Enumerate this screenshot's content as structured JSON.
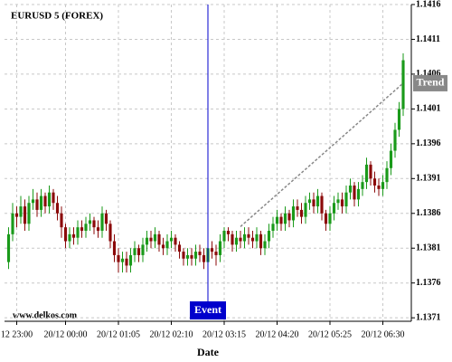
{
  "chart_data": {
    "type": "candlestick",
    "title": "EURUSD 5 (FOREX)",
    "watermark": "www.delkos.com",
    "x_label": "Date",
    "up_color": "#1a9a1a",
    "down_color": "#8b0a0a",
    "grid": true,
    "ylim": [
      1.13705,
      1.1416
    ],
    "yticks": [
      1.1371,
      1.1376,
      1.1381,
      1.1386,
      1.1391,
      1.1396,
      1.1401,
      1.1406,
      1.1411,
      1.1416
    ],
    "xlim": [
      -1,
      99
    ],
    "xticks": [
      {
        "value": 2,
        "label": "12 23:00"
      },
      {
        "value": 14,
        "label": "20/12 00:00"
      },
      {
        "value": 27,
        "label": "20/12 01:05"
      },
      {
        "value": 40,
        "label": "20/12 02:10"
      },
      {
        "value": 53,
        "label": "20/12 03:15"
      },
      {
        "value": 66,
        "label": "20/12 04:20"
      },
      {
        "value": 79,
        "label": "20/12 05:25"
      },
      {
        "value": 92,
        "label": "20/12 06:30"
      }
    ],
    "event": {
      "label": "Event",
      "x": 49,
      "color": "#0000cc"
    },
    "trend": {
      "label": "Trend",
      "x": [
        57,
        97
      ],
      "y": [
        1.13841,
        1.14047
      ],
      "color": "#888888"
    },
    "open": [
      1.1379,
      1.1383,
      1.1386,
      1.13855,
      1.1387,
      1.13845,
      1.13875,
      1.1388,
      1.13865,
      1.13885,
      1.1387,
      1.1389,
      1.13875,
      1.1386,
      1.1384,
      1.1382,
      1.1383,
      1.13825,
      1.1384,
      1.13835,
      1.13845,
      1.1385,
      1.1384,
      1.13835,
      1.1386,
      1.13845,
      1.1382,
      1.138,
      1.1379,
      1.13795,
      1.13785,
      1.138,
      1.1381,
      1.138,
      1.13815,
      1.13825,
      1.1382,
      1.1383,
      1.13815,
      1.1381,
      1.1382,
      1.13825,
      1.13815,
      1.13805,
      1.13795,
      1.138,
      1.13795,
      1.13805,
      1.138,
      1.1379,
      1.1381,
      1.13805,
      1.138,
      1.1382,
      1.13835,
      1.1383,
      1.13815,
      1.13825,
      1.1382,
      1.1383,
      1.13825,
      1.1382,
      1.1383,
      1.1381,
      1.1382,
      1.13835,
      1.13845,
      1.13855,
      1.13845,
      1.1386,
      1.1385,
      1.1387,
      1.13865,
      1.13855,
      1.13875,
      1.1388,
      1.1387,
      1.13885,
      1.1386,
      1.13845,
      1.1386,
      1.13875,
      1.1388,
      1.1387,
      1.1389,
      1.139,
      1.1388,
      1.13895,
      1.13905,
      1.1393,
      1.1391,
      1.139,
      1.13895,
      1.13905,
      1.13925,
      1.1395,
      1.1398,
      1.1401
    ],
    "high": [
      1.1384,
      1.13875,
      1.1387,
      1.13885,
      1.1388,
      1.13885,
      1.13895,
      1.1389,
      1.13895,
      1.1389,
      1.139,
      1.13895,
      1.13885,
      1.1387,
      1.13845,
      1.1384,
      1.1384,
      1.1385,
      1.1385,
      1.13855,
      1.1386,
      1.13855,
      1.1385,
      1.1387,
      1.13865,
      1.1385,
      1.1383,
      1.1381,
      1.13805,
      1.13805,
      1.1381,
      1.1382,
      1.13815,
      1.13825,
      1.13835,
      1.13835,
      1.1384,
      1.13835,
      1.13825,
      1.1383,
      1.13835,
      1.1383,
      1.1382,
      1.1381,
      1.1381,
      1.1381,
      1.13815,
      1.13815,
      1.1381,
      1.1382,
      1.1382,
      1.13815,
      1.1383,
      1.1384,
      1.1384,
      1.13835,
      1.13835,
      1.13835,
      1.1384,
      1.1384,
      1.13835,
      1.1384,
      1.13835,
      1.1383,
      1.13845,
      1.13855,
      1.13865,
      1.1386,
      1.1387,
      1.13865,
      1.1388,
      1.1388,
      1.13875,
      1.13885,
      1.1389,
      1.1389,
      1.13895,
      1.1389,
      1.13865,
      1.1387,
      1.13885,
      1.1389,
      1.1389,
      1.139,
      1.1391,
      1.13905,
      1.13905,
      1.13915,
      1.1394,
      1.13935,
      1.1392,
      1.1391,
      1.13915,
      1.13935,
      1.1396,
      1.1399,
      1.1402,
      1.1409
    ],
    "low": [
      1.1378,
      1.1382,
      1.1384,
      1.13845,
      1.13835,
      1.13835,
      1.13865,
      1.13855,
      1.13855,
      1.1386,
      1.1386,
      1.13865,
      1.1385,
      1.13825,
      1.1381,
      1.1381,
      1.13815,
      1.13815,
      1.13825,
      1.13825,
      1.13835,
      1.1383,
      1.13825,
      1.13825,
      1.13835,
      1.1381,
      1.1379,
      1.13775,
      1.13775,
      1.13775,
      1.13775,
      1.1379,
      1.1379,
      1.1379,
      1.13805,
      1.1381,
      1.1381,
      1.13805,
      1.138,
      1.138,
      1.1381,
      1.13805,
      1.13795,
      1.13785,
      1.13785,
      1.13785,
      1.13785,
      1.1379,
      1.1378,
      1.1378,
      1.13795,
      1.13785,
      1.1379,
      1.1381,
      1.1382,
      1.13805,
      1.13805,
      1.1381,
      1.1381,
      1.13815,
      1.1381,
      1.1381,
      1.138,
      1.138,
      1.1381,
      1.13825,
      1.13835,
      1.13835,
      1.13835,
      1.1384,
      1.1384,
      1.13855,
      1.13845,
      1.13845,
      1.13865,
      1.1386,
      1.1386,
      1.1385,
      1.13835,
      1.13835,
      1.1385,
      1.13865,
      1.1386,
      1.1386,
      1.1388,
      1.1387,
      1.1387,
      1.13885,
      1.13895,
      1.139,
      1.1389,
      1.13885,
      1.13885,
      1.13895,
      1.13915,
      1.1394,
      1.1397,
      1.14
    ],
    "close": [
      1.1383,
      1.1386,
      1.13855,
      1.1387,
      1.13845,
      1.13875,
      1.1388,
      1.13865,
      1.13885,
      1.1387,
      1.1389,
      1.13875,
      1.1386,
      1.1384,
      1.1382,
      1.1383,
      1.13825,
      1.1384,
      1.13835,
      1.13845,
      1.1385,
      1.1384,
      1.13835,
      1.1386,
      1.13845,
      1.1382,
      1.138,
      1.1379,
      1.13795,
      1.13785,
      1.138,
      1.1381,
      1.138,
      1.13815,
      1.13825,
      1.1382,
      1.1383,
      1.13815,
      1.1381,
      1.1382,
      1.13825,
      1.13815,
      1.13805,
      1.13795,
      1.138,
      1.13795,
      1.13805,
      1.138,
      1.1379,
      1.1381,
      1.13805,
      1.138,
      1.1382,
      1.13835,
      1.1383,
      1.13815,
      1.13825,
      1.1382,
      1.1383,
      1.13825,
      1.1382,
      1.1383,
      1.1381,
      1.1382,
      1.13835,
      1.13845,
      1.13855,
      1.13845,
      1.1386,
      1.1385,
      1.1387,
      1.13865,
      1.13855,
      1.13875,
      1.1388,
      1.1387,
      1.13885,
      1.1386,
      1.13845,
      1.1386,
      1.13875,
      1.1388,
      1.1387,
      1.1389,
      1.139,
      1.1388,
      1.13895,
      1.13905,
      1.1393,
      1.1391,
      1.139,
      1.13895,
      1.13905,
      1.13925,
      1.1395,
      1.1398,
      1.1401,
      1.1408
    ]
  }
}
